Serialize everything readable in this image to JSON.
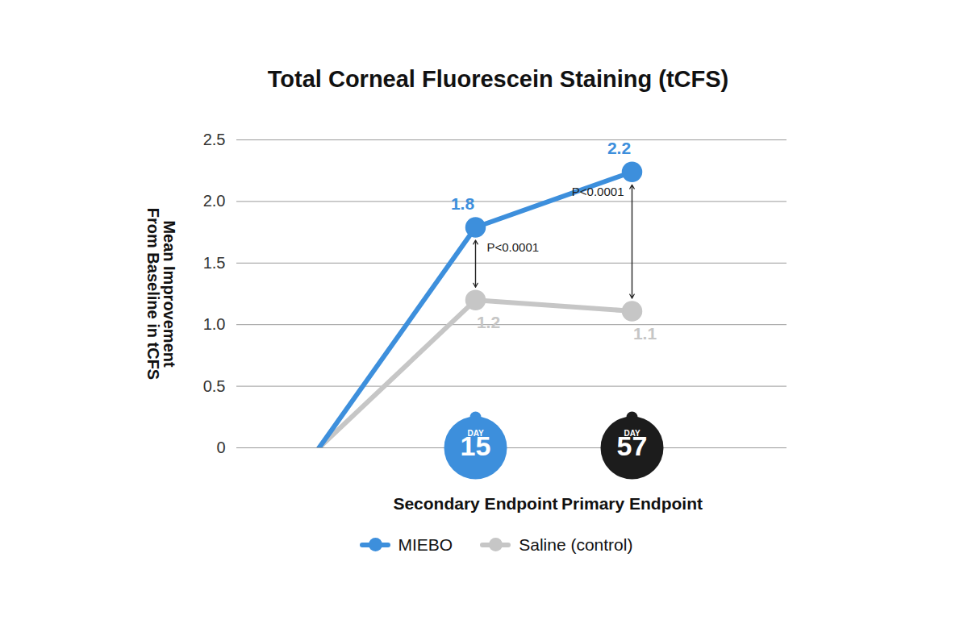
{
  "chart_data": {
    "type": "line",
    "title": "Total Corneal Fluorescein Staining (tCFS)",
    "y_label": "Mean Improvement\nFrom Baseline in tCFS",
    "categories": [
      null,
      "Secondary Endpoint",
      "Primary Endpoint"
    ],
    "series": [
      {
        "name": "Saline (control)",
        "color": "#c6c6c6",
        "values": [
          0,
          1.2,
          1.11
        ],
        "value_labels": [
          null,
          "1.2",
          "1.1"
        ]
      },
      {
        "name": "MIEBO",
        "color": "#3d8fdc",
        "values": [
          0,
          1.79,
          2.24
        ],
        "value_labels": [
          null,
          "1.8",
          "2.2"
        ]
      }
    ],
    "ylim": [
      0,
      2.5
    ],
    "yticks": [
      0,
      0.5,
      {
        "value": 1,
        "label": "1.0"
      },
      1.5,
      {
        "value": 2,
        "label": "2.0"
      },
      2.5
    ],
    "grid": true,
    "data_labels": true,
    "legend": "bottom",
    "annotations": [
      {
        "text": "P<0.0001",
        "category": "Secondary Endpoint"
      },
      {
        "text": "P<0.0001",
        "category": "Primary Endpoint"
      }
    ],
    "badges": [
      {
        "category": "Secondary Endpoint",
        "label": "DAY",
        "text": "15",
        "color": "#3d8fdc"
      },
      {
        "category": "Primary Endpoint",
        "label": "DAY",
        "text": "57",
        "color": "#1c1c1c"
      }
    ]
  }
}
